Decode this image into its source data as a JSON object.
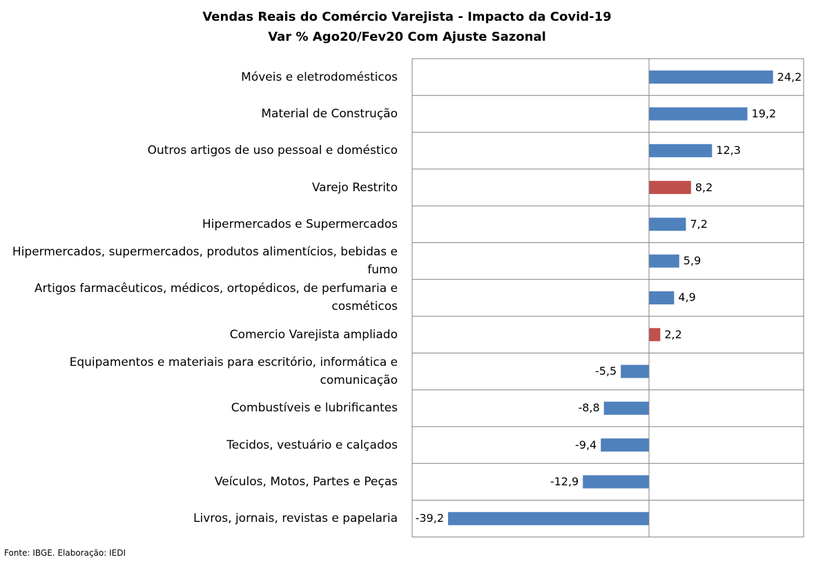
{
  "chart_data": {
    "type": "bar",
    "orientation": "horizontal",
    "title": "Vendas Reais do Comércio Varejista - Impacto da Covid-19",
    "subtitle": "Var % Ago20/Fev20 Com Ajuste Sazonal",
    "categories": [
      "Móveis e eletrodomésticos",
      "Material de Construção",
      "Outros artigos de uso pessoal e doméstico",
      "Varejo Restrito",
      "Hipermercados e Supermercados",
      "Hipermercados, supermercados, produtos alimentícios, bebidas e fumo",
      "Artigos farmacêuticos, médicos, ortopédicos, de perfumaria e cosméticos",
      "Comercio Varejista ampliado",
      "Equipamentos e materiais para escritório, informática e comunicação",
      "Combustíveis e lubrificantes",
      "Tecidos, vestuário e calçados",
      "Veículos, Motos, Partes e Peças",
      "Livros, jornais, revistas e papelaria"
    ],
    "values": [
      24.2,
      19.2,
      12.3,
      8.2,
      7.2,
      5.9,
      4.9,
      2.2,
      -5.5,
      -8.8,
      -9.4,
      -12.9,
      -39.2
    ],
    "value_labels": [
      "24,2",
      "19,2",
      "12,3",
      "8,2",
      "7,2",
      "5,9",
      "4,9",
      "2,2",
      "-5,5",
      "-8,8",
      "-9,4",
      "-12,9",
      "-39,2"
    ],
    "highlighted": [
      false,
      false,
      false,
      true,
      false,
      false,
      false,
      true,
      false,
      false,
      false,
      false,
      false
    ],
    "colors": {
      "default": "#4F81BD",
      "highlight": "#C0504D",
      "grid": "#808080"
    },
    "xlim": [
      -40,
      30
    ],
    "grid": true,
    "legend": "none"
  },
  "source": "Fonte: IBGE. Elaboração: IEDI"
}
